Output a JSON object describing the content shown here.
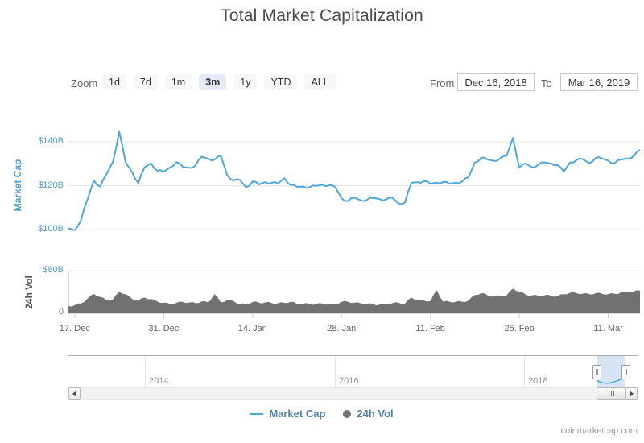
{
  "title": "Total Market Capitalization",
  "watermark": "coinmarketcap.com",
  "range_selector": {
    "zoom_label": "Zoom",
    "buttons": [
      {
        "label": "1d",
        "selected": false
      },
      {
        "label": "7d",
        "selected": false
      },
      {
        "label": "1m",
        "selected": false
      },
      {
        "label": "3m",
        "selected": true
      },
      {
        "label": "1y",
        "selected": false
      },
      {
        "label": "YTD",
        "selected": false
      },
      {
        "label": "ALL",
        "selected": false
      }
    ],
    "from_label": "From",
    "from_value": "Dec 16, 2018",
    "to_label": "To",
    "to_value": "Mar 16, 2019"
  },
  "legend": {
    "items": [
      {
        "name": "Market Cap",
        "marker": "line",
        "color": "#4fa7da"
      },
      {
        "name": "24h Vol",
        "marker": "circle",
        "color": "#757575"
      }
    ]
  },
  "chart_data": {
    "type": "line",
    "title": "Total Market Capitalization",
    "xlabel": "",
    "ylabel": "Market Cap",
    "x_range": {
      "from": "Dec 16, 2018",
      "to": "Mar 16, 2019"
    },
    "x_tick_labels": [
      "17. Dec",
      "31. Dec",
      "14. Jan",
      "28. Jan",
      "11. Feb",
      "25. Feb",
      "11. Mar"
    ],
    "x_tick_days": [
      1,
      15,
      29,
      43,
      57,
      71,
      85
    ],
    "days_total": 90,
    "grid": true,
    "panes": [
      {
        "title": "Market Cap",
        "unit": "USD billions",
        "ylim": [
          95,
          147.5
        ],
        "yticks": [
          {
            "value": 100,
            "label": "$100B"
          },
          {
            "value": 120,
            "label": "$120B"
          },
          {
            "value": 140,
            "label": "$140B"
          }
        ]
      },
      {
        "title": "24h Vol",
        "unit": "USD billions",
        "ylim": [
          0,
          80
        ],
        "yticks": [
          {
            "value": 0,
            "label": "0"
          },
          {
            "value": 80,
            "label": "$80B"
          }
        ]
      }
    ],
    "series": [
      {
        "name": "Market Cap",
        "type": "line",
        "color": "#4fa7da",
        "unit": "USD billions",
        "values": [
          100.6,
          99.7,
          104.5,
          113.8,
          122.3,
          119.6,
          125.2,
          130.8,
          144.5,
          130.6,
          126.3,
          121.2,
          128.4,
          130.2,
          126.8,
          126.4,
          128.3,
          130.7,
          128.6,
          128.1,
          129.2,
          133.2,
          132.3,
          131.8,
          133.6,
          124.8,
          122.3,
          122.6,
          119.2,
          121.9,
          120.6,
          121.6,
          121.3,
          121.0,
          123.4,
          120.3,
          119.4,
          119.6,
          119.3,
          119.9,
          120.4,
          120.1,
          119.4,
          114.3,
          112.9,
          114.6,
          113.4,
          113.5,
          114.4,
          113.9,
          113.6,
          114.5,
          111.9,
          112.4,
          121.3,
          121.6,
          122.1,
          120.9,
          121.4,
          121.6,
          120.9,
          121.3,
          121.9,
          123.8,
          130.6,
          132.7,
          131.9,
          131.3,
          132.4,
          133.6,
          141.8,
          128.2,
          130.1,
          128.4,
          129.6,
          130.6,
          130.1,
          129.4,
          126.4,
          130.6,
          131.6,
          132.1,
          130.3,
          132.6,
          132.4,
          131.4,
          130.2,
          131.9,
          132.4,
          133.4,
          136.3
        ]
      },
      {
        "name": "24h Vol",
        "type": "area",
        "color": "#717171",
        "unit": "USD billions",
        "values": [
          13.5,
          15.2,
          18.4,
          27.6,
          36.2,
          30.8,
          24.3,
          26.1,
          40.4,
          35.7,
          27.2,
          23.8,
          29.3,
          26.6,
          22.1,
          19.8,
          17.2,
          19.4,
          21.3,
          20.2,
          19.1,
          22.4,
          20.3,
          35.8,
          20.6,
          24.9,
          22.8,
          17.4,
          17.1,
          21.2,
          19.8,
          20.4,
          19.2,
          18.8,
          19.6,
          21.8,
          17.3,
          18.1,
          17.2,
          17.4,
          18.2,
          17.1,
          16.8,
          21.4,
          21.8,
          19.6,
          18.9,
          17.8,
          16.9,
          16.2,
          17.1,
          18.8,
          19.7,
          18.3,
          29.6,
          24.8,
          23.9,
          22.9,
          43.5,
          21.8,
          21.9,
          21.6,
          21.8,
          23.7,
          34.2,
          37.8,
          33.6,
          31.9,
          32.8,
          33.7,
          46.3,
          40.8,
          35.1,
          33.6,
          32.8,
          33.9,
          32.8,
          32.1,
          35.8,
          38.6,
          37.8,
          36.9,
          35.8,
          37.6,
          36.8,
          35.9,
          36.7,
          38.8,
          39.9,
          40.8,
          42.6
        ]
      }
    ],
    "navigator": {
      "year_labels": [
        "2014",
        "2016",
        "2018"
      ],
      "selection_at_right_edge": true
    }
  }
}
